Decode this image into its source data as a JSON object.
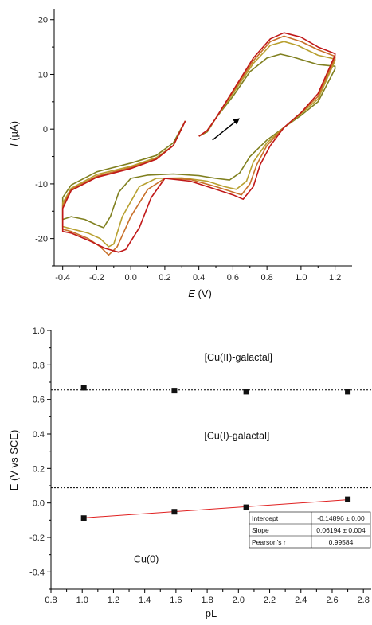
{
  "chart_data": [
    {
      "type": "line",
      "title": "",
      "xlabel_var": "E",
      "xlabel_unit": " (V)",
      "ylabel_var": "I",
      "ylabel_unit": " (µA)",
      "xlim": [
        -0.45,
        1.3
      ],
      "ylim": [
        -25,
        22
      ],
      "xticks": [
        -0.4,
        -0.2,
        0.0,
        0.2,
        0.4,
        0.6,
        0.8,
        1.0,
        1.2
      ],
      "xtick_labels": [
        "-0.4",
        "-0.2",
        "0.0",
        "0.2",
        "0.4",
        "0.6",
        "0.8",
        "1.0",
        "1.2"
      ],
      "yticks": [
        -20,
        -10,
        0,
        10,
        20
      ],
      "ytick_labels": [
        "-20",
        "-10",
        "0",
        "10",
        "20"
      ],
      "grid": false,
      "colors": [
        "#808020",
        "#b8a030",
        "#c8702a",
        "#c01818"
      ],
      "arrow": {
        "from": [
          0.48,
          -2
        ],
        "to": [
          0.64,
          2
        ]
      },
      "series": [
        {
          "color": "#808020",
          "values": [
            [
              0.32,
              1.5
            ],
            [
              0.25,
              -2.5
            ],
            [
              0.15,
              -4.8
            ],
            [
              0.0,
              -6.2
            ],
            [
              -0.2,
              -7.8
            ],
            [
              -0.35,
              -10.2
            ],
            [
              -0.4,
              -12.5
            ],
            [
              -0.4,
              -16.5
            ],
            [
              -0.35,
              -16.0
            ],
            [
              -0.27,
              -16.5
            ],
            [
              -0.2,
              -17.5
            ],
            [
              -0.16,
              -18.0
            ],
            [
              -0.12,
              -16.0
            ],
            [
              -0.07,
              -11.5
            ],
            [
              0.0,
              -9.0
            ],
            [
              0.1,
              -8.4
            ],
            [
              0.25,
              -8.2
            ],
            [
              0.4,
              -8.5
            ],
            [
              0.5,
              -9.0
            ],
            [
              0.58,
              -9.3
            ],
            [
              0.64,
              -8.0
            ],
            [
              0.7,
              -5.0
            ],
            [
              0.8,
              -2.0
            ],
            [
              0.9,
              0.3
            ],
            [
              1.0,
              2.5
            ],
            [
              1.1,
              5.0
            ],
            [
              1.2,
              11.0
            ],
            [
              1.2,
              11.5
            ],
            [
              1.1,
              11.8
            ],
            [
              0.95,
              13.2
            ],
            [
              0.88,
              13.7
            ],
            [
              0.8,
              13.0
            ],
            [
              0.7,
              10.5
            ],
            [
              0.6,
              6.0
            ],
            [
              0.5,
              2.0
            ],
            [
              0.45,
              -0.5
            ],
            [
              0.4,
              -1.3
            ]
          ]
        },
        {
          "color": "#b8a030",
          "values": [
            [
              0.32,
              1.5
            ],
            [
              0.25,
              -3.0
            ],
            [
              0.15,
              -5.2
            ],
            [
              0.0,
              -6.8
            ],
            [
              -0.2,
              -8.3
            ],
            [
              -0.35,
              -10.8
            ],
            [
              -0.4,
              -13.5
            ],
            [
              -0.4,
              -17.8
            ],
            [
              -0.35,
              -18.2
            ],
            [
              -0.25,
              -19.0
            ],
            [
              -0.18,
              -20.0
            ],
            [
              -0.13,
              -21.5
            ],
            [
              -0.1,
              -21.0
            ],
            [
              -0.05,
              -16.0
            ],
            [
              0.05,
              -10.5
            ],
            [
              0.15,
              -9.0
            ],
            [
              0.3,
              -8.9
            ],
            [
              0.45,
              -9.5
            ],
            [
              0.55,
              -10.5
            ],
            [
              0.62,
              -11.0
            ],
            [
              0.68,
              -9.5
            ],
            [
              0.72,
              -6.0
            ],
            [
              0.8,
              -2.5
            ],
            [
              0.9,
              0.3
            ],
            [
              1.0,
              2.8
            ],
            [
              1.1,
              5.5
            ],
            [
              1.2,
              12.5
            ],
            [
              1.2,
              12.8
            ],
            [
              1.1,
              13.5
            ],
            [
              0.98,
              15.3
            ],
            [
              0.9,
              16.0
            ],
            [
              0.82,
              15.3
            ],
            [
              0.72,
              12.0
            ],
            [
              0.6,
              6.5
            ],
            [
              0.5,
              2.0
            ],
            [
              0.45,
              -0.3
            ],
            [
              0.4,
              -1.3
            ]
          ]
        },
        {
          "color": "#c8702a",
          "values": [
            [
              0.32,
              1.5
            ],
            [
              0.25,
              -3.0
            ],
            [
              0.15,
              -5.4
            ],
            [
              0.0,
              -7.0
            ],
            [
              -0.2,
              -8.6
            ],
            [
              -0.35,
              -11.0
            ],
            [
              -0.4,
              -14.0
            ],
            [
              -0.4,
              -18.3
            ],
            [
              -0.35,
              -18.7
            ],
            [
              -0.25,
              -20.0
            ],
            [
              -0.18,
              -21.5
            ],
            [
              -0.13,
              -23.0
            ],
            [
              -0.08,
              -21.5
            ],
            [
              0.0,
              -16.0
            ],
            [
              0.1,
              -11.0
            ],
            [
              0.2,
              -9.0
            ],
            [
              0.35,
              -9.2
            ],
            [
              0.5,
              -10.5
            ],
            [
              0.6,
              -11.5
            ],
            [
              0.65,
              -12.0
            ],
            [
              0.7,
              -10.0
            ],
            [
              0.74,
              -6.5
            ],
            [
              0.8,
              -3.0
            ],
            [
              0.9,
              0.3
            ],
            [
              1.0,
              3.0
            ],
            [
              1.1,
              6.0
            ],
            [
              1.2,
              13.0
            ],
            [
              1.2,
              13.3
            ],
            [
              1.1,
              14.5
            ],
            [
              1.0,
              16.0
            ],
            [
              0.9,
              17.0
            ],
            [
              0.82,
              16.0
            ],
            [
              0.72,
              12.5
            ],
            [
              0.6,
              6.8
            ],
            [
              0.5,
              2.0
            ],
            [
              0.45,
              -0.3
            ],
            [
              0.4,
              -1.3
            ]
          ]
        },
        {
          "color": "#c01818",
          "values": [
            [
              0.32,
              1.5
            ],
            [
              0.25,
              -3.0
            ],
            [
              0.15,
              -5.5
            ],
            [
              0.0,
              -7.2
            ],
            [
              -0.2,
              -8.8
            ],
            [
              -0.35,
              -11.2
            ],
            [
              -0.4,
              -14.5
            ],
            [
              -0.4,
              -18.7
            ],
            [
              -0.35,
              -19.0
            ],
            [
              -0.25,
              -20.3
            ],
            [
              -0.15,
              -21.8
            ],
            [
              -0.07,
              -22.5
            ],
            [
              -0.03,
              -22.0
            ],
            [
              0.05,
              -18.0
            ],
            [
              0.12,
              -12.5
            ],
            [
              0.2,
              -9.0
            ],
            [
              0.35,
              -9.5
            ],
            [
              0.5,
              -11.0
            ],
            [
              0.6,
              -12.0
            ],
            [
              0.66,
              -12.8
            ],
            [
              0.72,
              -10.5
            ],
            [
              0.76,
              -6.5
            ],
            [
              0.82,
              -3.0
            ],
            [
              0.9,
              0.3
            ],
            [
              1.0,
              3.0
            ],
            [
              1.1,
              6.5
            ],
            [
              1.2,
              13.5
            ],
            [
              1.2,
              13.8
            ],
            [
              1.1,
              15.0
            ],
            [
              1.0,
              16.8
            ],
            [
              0.9,
              17.6
            ],
            [
              0.82,
              16.5
            ],
            [
              0.72,
              13.0
            ],
            [
              0.6,
              7.0
            ],
            [
              0.5,
              2.0
            ],
            [
              0.45,
              -0.2
            ],
            [
              0.4,
              -1.3
            ]
          ]
        }
      ]
    },
    {
      "type": "scatter",
      "title": "",
      "xlabel": "pL",
      "ylabel": "E (V vs SCE)",
      "xlim": [
        0.8,
        2.85
      ],
      "ylim": [
        -0.5,
        1.0
      ],
      "xticks": [
        0.8,
        1.0,
        1.2,
        1.4,
        1.6,
        1.8,
        2.0,
        2.2,
        2.4,
        2.6,
        2.8
      ],
      "xtick_labels": [
        "0.8",
        "1.0",
        "1.2",
        "1.4",
        "1.6",
        "1.8",
        "2.0",
        "2.2",
        "2.4",
        "2.6",
        "2.8"
      ],
      "yticks": [
        -0.4,
        -0.2,
        0.0,
        0.2,
        0.4,
        0.6,
        0.8,
        1.0
      ],
      "ytick_labels": [
        "-0.4",
        "-0.2",
        "0.0",
        "0.2",
        "0.4",
        "0.6",
        "0.8",
        "1.0"
      ],
      "grid": false,
      "hlines": [
        0.655,
        0.088
      ],
      "points": [
        {
          "x": 1.01,
          "y": 0.668
        },
        {
          "x": 1.59,
          "y": 0.651
        },
        {
          "x": 2.05,
          "y": 0.645
        },
        {
          "x": 2.7,
          "y": 0.645
        },
        {
          "x": 1.01,
          "y": -0.088
        },
        {
          "x": 1.59,
          "y": -0.051
        },
        {
          "x": 2.05,
          "y": -0.025
        },
        {
          "x": 2.7,
          "y": 0.021
        }
      ],
      "fit": {
        "x": [
          1.01,
          2.7
        ],
        "y": [
          -0.0861,
          0.0186
        ],
        "color": "#e02020"
      },
      "regions": [
        {
          "label": "[Cu(II)-galactal]",
          "x": 2.0,
          "y": 0.825
        },
        {
          "label": "[Cu(I)-galactal]",
          "x": 1.99,
          "y": 0.37
        },
        {
          "label": "Cu(0)",
          "x": 1.41,
          "y": -0.345
        }
      ],
      "table": [
        [
          "Intercept",
          "-0.14896 ± 0.00"
        ],
        [
          "Slope",
          "0.06194 ± 0.004"
        ],
        [
          "Pearson's r",
          "0.99584"
        ]
      ]
    }
  ]
}
